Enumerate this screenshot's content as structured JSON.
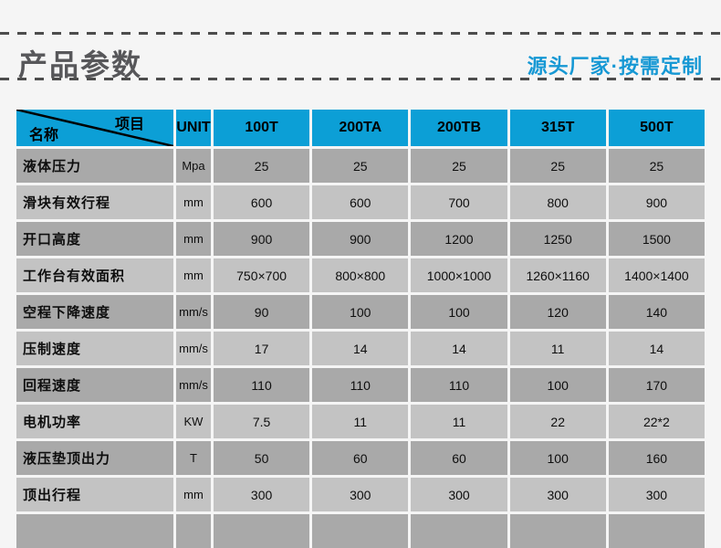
{
  "header": {
    "title": "产品参数",
    "tagline": "源头厂家·按需定制"
  },
  "colors": {
    "accent_blue": "#0c9fd6",
    "tagline_blue": "#1698d4",
    "title_gray": "#57575a",
    "row_dark_gray": "#a9a9a9",
    "row_light_gray": "#c3c3c3",
    "page_background": "#f5f5f5",
    "dash_gray": "#4d4d4d"
  },
  "table": {
    "corner": {
      "top_label": "项目",
      "bottom_label": "名称"
    },
    "unit_header": "UNIT",
    "model_headers": [
      "100T",
      "200TA",
      "200TB",
      "315T",
      "500T"
    ],
    "rows": [
      {
        "name": "液体压力",
        "unit": "Mpa",
        "values": [
          "25",
          "25",
          "25",
          "25",
          "25"
        ]
      },
      {
        "name": "滑块有效行程",
        "unit": "mm",
        "values": [
          "600",
          "600",
          "700",
          "800",
          "900"
        ]
      },
      {
        "name": "开口高度",
        "unit": "mm",
        "values": [
          "900",
          "900",
          "1200",
          "1250",
          "1500"
        ]
      },
      {
        "name": "工作台有效面积",
        "unit": "mm",
        "values": [
          "750×700",
          "800×800",
          "1000×1000",
          "1260×1160",
          "1400×1400"
        ]
      },
      {
        "name": "空程下降速度",
        "unit": "mm/s",
        "values": [
          "90",
          "100",
          "100",
          "120",
          "140"
        ]
      },
      {
        "name": "压制速度",
        "unit": "mm/s",
        "values": [
          "17",
          "14",
          "14",
          "11",
          "14"
        ]
      },
      {
        "name": "回程速度",
        "unit": "mm/s",
        "values": [
          "110",
          "110",
          "110",
          "100",
          "170"
        ]
      },
      {
        "name": "电机功率",
        "unit": "KW",
        "values": [
          "7.5",
          "11",
          "11",
          "22",
          "22*2"
        ]
      },
      {
        "name": "液压垫顶出力",
        "unit": "T",
        "values": [
          "50",
          "60",
          "60",
          "100",
          "160"
        ]
      },
      {
        "name": "顶出行程",
        "unit": "mm",
        "values": [
          "300",
          "300",
          "300",
          "300",
          "300"
        ]
      }
    ]
  }
}
